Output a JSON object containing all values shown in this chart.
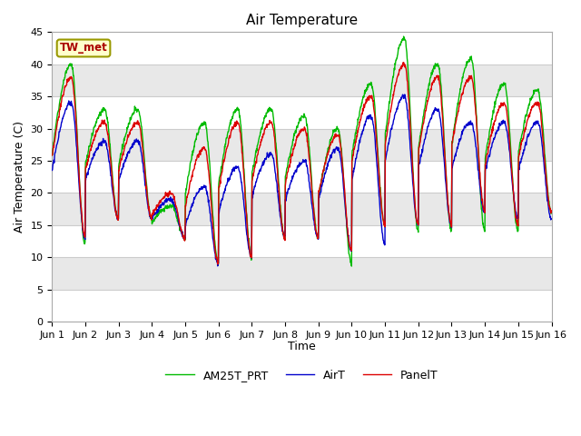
{
  "title": "Air Temperature",
  "ylabel": "Air Temperature (C)",
  "xlabel": "Time",
  "ylim": [
    0,
    45
  ],
  "xlim": [
    0,
    15
  ],
  "yticks": [
    0,
    5,
    10,
    15,
    20,
    25,
    30,
    35,
    40,
    45
  ],
  "xtick_labels": [
    "Jun 1",
    "Jun 2",
    "Jun 3",
    "Jun 4",
    "Jun 5",
    "Jun 6",
    "Jun 7",
    "Jun 8",
    "Jun 9",
    "Jun 10",
    "Jun 11",
    "Jun 12",
    "Jun 13",
    "Jun 14",
    "Jun 15",
    "Jun 16"
  ],
  "label_text": "TW_met",
  "line_colors": [
    "#dd0000",
    "#0000cc",
    "#00bb00"
  ],
  "line_names": [
    "PanelT",
    "AirT",
    "AM25T_PRT"
  ],
  "fig_bg": "#ffffff",
  "plot_bg": "#ffffff",
  "band_color": "#e8e8e8",
  "grid_line_color": "#cccccc",
  "figsize": [
    6.4,
    4.8
  ],
  "dpi": 100,
  "panel_mins": [
    13,
    16,
    16,
    13,
    9,
    10,
    13,
    13,
    11,
    15,
    15,
    15,
    17,
    15,
    17
  ],
  "panel_maxs": [
    38,
    31,
    31,
    20,
    27,
    31,
    31,
    30,
    29,
    35,
    40,
    38,
    38,
    34,
    34
  ],
  "air_mins": [
    13,
    16,
    16,
    13,
    9,
    10,
    13,
    13,
    11,
    12,
    15,
    15,
    17,
    16,
    16
  ],
  "air_maxs": [
    34,
    28,
    28,
    19,
    21,
    24,
    26,
    25,
    27,
    32,
    35,
    33,
    31,
    31,
    31
  ],
  "am25_mins": [
    12,
    16,
    16,
    13,
    9,
    10,
    13,
    13,
    9,
    15,
    14,
    14,
    14,
    14,
    17
  ],
  "am25_maxs": [
    40,
    33,
    33,
    18,
    31,
    33,
    33,
    32,
    30,
    37,
    44,
    40,
    41,
    37,
    36
  ]
}
